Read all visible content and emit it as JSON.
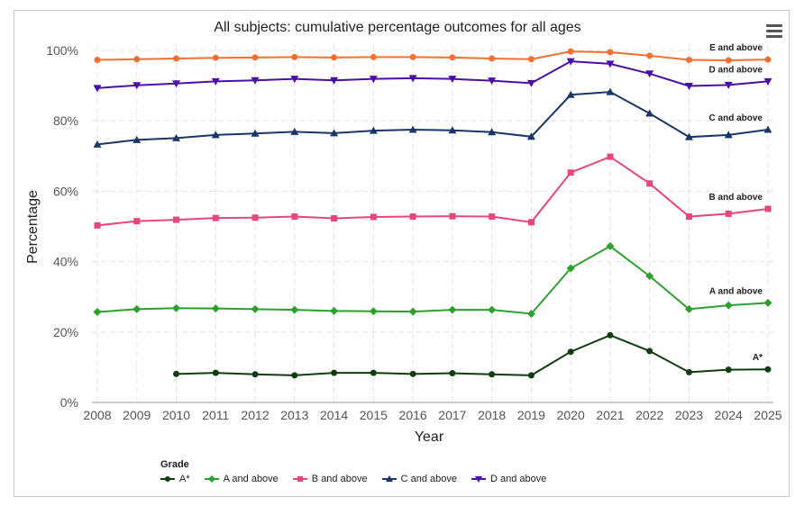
{
  "chart_data": {
    "type": "line",
    "title": "All subjects: cumulative percentage outcomes for all ages",
    "xlabel": "Year",
    "ylabel": "Percentage",
    "x": [
      2008,
      2009,
      2010,
      2011,
      2012,
      2013,
      2014,
      2015,
      2016,
      2017,
      2018,
      2019,
      2020,
      2021,
      2022,
      2023,
      2024,
      2025
    ],
    "ylim": [
      0,
      100
    ],
    "yticks": [
      "0%",
      "20%",
      "40%",
      "60%",
      "80%",
      "100%"
    ],
    "ytick_values": [
      0,
      20,
      40,
      60,
      80,
      100
    ],
    "grid": true,
    "legend_position": "bottom-left",
    "legend_title": "Grade",
    "series": [
      {
        "name": "A*",
        "end_label": "A*",
        "color": "#0f3d0f",
        "marker": "circle",
        "values": [
          null,
          null,
          8.1,
          8.4,
          8.0,
          7.7,
          8.4,
          8.4,
          8.1,
          8.3,
          8.0,
          7.7,
          14.4,
          19.1,
          14.6,
          8.6,
          9.3,
          9.4
        ]
      },
      {
        "name": "A and above",
        "end_label": "A and above",
        "color": "#2ca02c",
        "marker": "diamond",
        "values": [
          25.7,
          26.5,
          26.8,
          26.7,
          26.5,
          26.3,
          26.0,
          25.9,
          25.8,
          26.3,
          26.3,
          25.2,
          38.1,
          44.4,
          35.9,
          26.5,
          27.6,
          28.3
        ]
      },
      {
        "name": "B and above",
        "end_label": "B and above",
        "color": "#e8457a",
        "marker": "square",
        "values": [
          50.3,
          51.5,
          51.9,
          52.4,
          52.5,
          52.8,
          52.3,
          52.7,
          52.8,
          52.9,
          52.8,
          51.2,
          65.3,
          69.8,
          62.2,
          52.8,
          53.6,
          55.0
        ]
      },
      {
        "name": "C and above",
        "end_label": "C and above",
        "color": "#1a3566",
        "marker": "triangle",
        "values": [
          73.3,
          74.6,
          75.1,
          76.0,
          76.4,
          76.9,
          76.5,
          77.2,
          77.5,
          77.3,
          76.8,
          75.5,
          87.4,
          88.2,
          82.1,
          75.4,
          76.0,
          77.5
        ]
      },
      {
        "name": "D and above",
        "end_label": "D and above",
        "color": "#4b0fa8",
        "marker": "triangle-down",
        "values": [
          89.3,
          90.1,
          90.6,
          91.2,
          91.5,
          91.9,
          91.5,
          91.9,
          92.1,
          91.9,
          91.4,
          90.7,
          96.9,
          96.2,
          93.4,
          89.9,
          90.2,
          91.2
        ]
      },
      {
        "name": "E and above",
        "end_label": "E and above",
        "color": "#f07033",
        "marker": "circle",
        "values": [
          97.3,
          97.5,
          97.7,
          97.9,
          98.0,
          98.1,
          98.0,
          98.1,
          98.1,
          98.0,
          97.7,
          97.5,
          99.7,
          99.5,
          98.5,
          97.3,
          97.2,
          97.4
        ]
      }
    ]
  }
}
